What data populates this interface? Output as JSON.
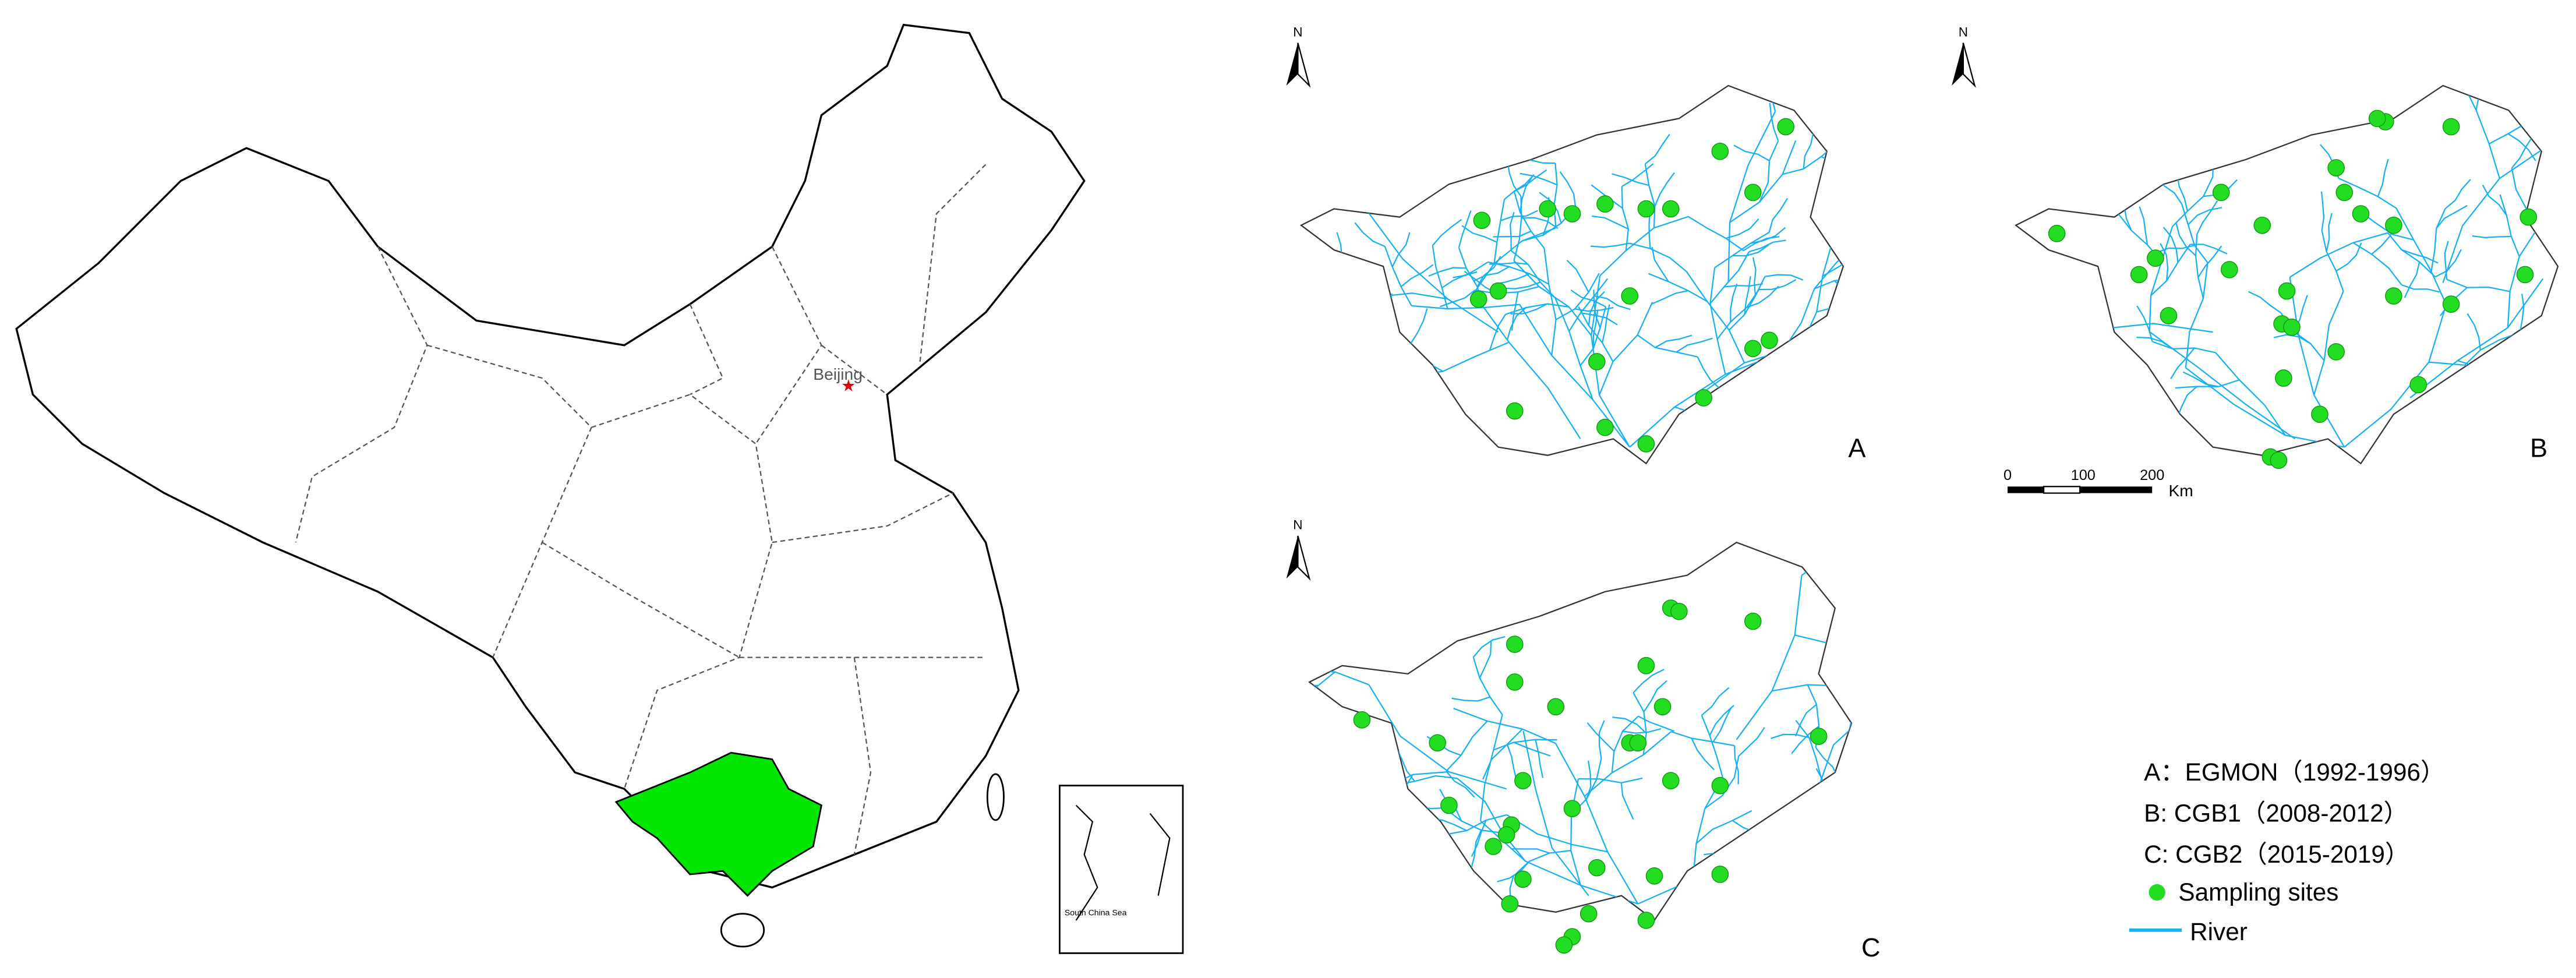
{
  "china_map": {
    "capital_label": "Beijing",
    "inset_label": "South China Sea"
  },
  "panels": [
    {
      "label": "A",
      "north": "N"
    },
    {
      "label": "B",
      "north": "N"
    },
    {
      "label": "C",
      "north": "N"
    }
  ],
  "scale_bar": {
    "ticks": [
      "0",
      "100",
      "200"
    ],
    "unit": "Km"
  },
  "legend": {
    "items": [
      "A：EGMON（1992-1996）",
      "B: CGB1（2008-2012）",
      "C: CGB2（2015-2019）",
      "Sampling sites",
      "River"
    ]
  }
}
